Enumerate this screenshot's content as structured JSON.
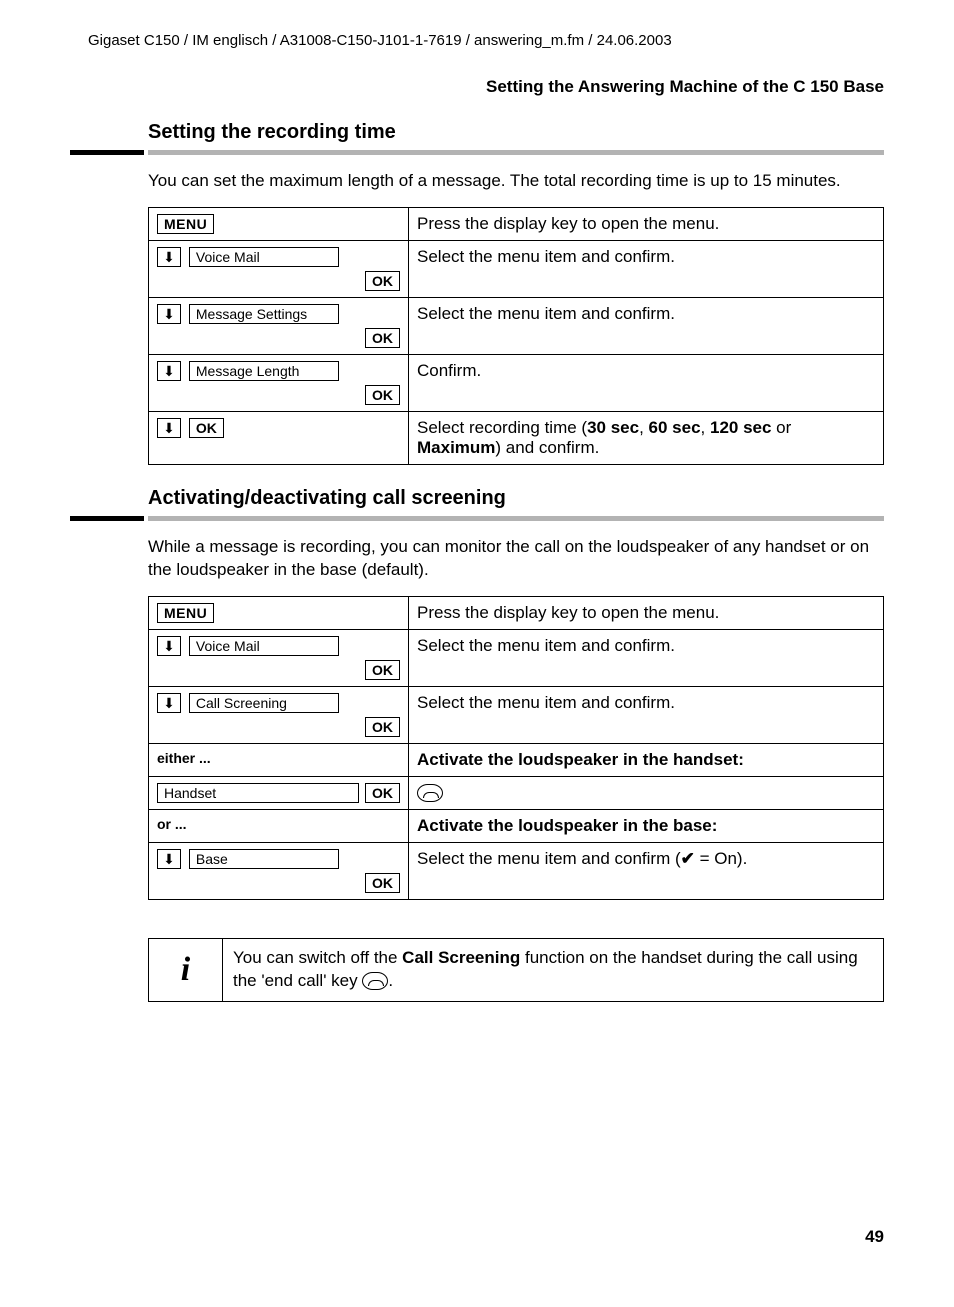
{
  "header": "Gigaset C150 / IM englisch / A31008-C150-J101-1-7619 / answering_m.fm / 24.06.2003",
  "running_title": "Setting the Answering Machine of the C 150 Base",
  "page_number": "49",
  "labels": {
    "menu": "MENU",
    "ok": "OK",
    "arrow_down": "⬇"
  },
  "section1": {
    "title": "Setting the recording time",
    "intro": "You can set the maximum length of a message. The total recording time is up to 15 minutes.",
    "rows": [
      {
        "type": "menu",
        "desc": "Press the display key to open the menu."
      },
      {
        "type": "item",
        "item": "Voice Mail",
        "desc": "Select the menu item and confirm."
      },
      {
        "type": "item",
        "item": "Message Settings",
        "desc": "Select the menu item and confirm."
      },
      {
        "type": "item",
        "item": "Message Length",
        "desc": "Confirm."
      },
      {
        "type": "ok_only",
        "desc_pre": "Select recording time (",
        "bold1": "30 sec",
        "sep1": ", ",
        "bold2": "60 sec",
        "sep2": ", ",
        "bold3": "120 sec",
        "sep3": " or ",
        "bold4": "Maximum",
        "desc_post": ") and confirm."
      }
    ]
  },
  "section2": {
    "title": "Activating/deactivating call screening",
    "intro": "While a message is recording, you can monitor the call on the loudspeaker of any handset or on the loudspeaker in the base (default).",
    "rows": [
      {
        "type": "menu",
        "desc": "Press the display key to open the menu."
      },
      {
        "type": "item",
        "item": "Voice Mail",
        "desc": "Select the menu item and confirm."
      },
      {
        "type": "item",
        "item": "Call Screening",
        "desc": "Select the menu item and confirm."
      },
      {
        "type": "subhead",
        "left": "either ...",
        "right": "Activate the loudspeaker in the handset:"
      },
      {
        "type": "choice",
        "item": "Handset",
        "desc_icon": true
      },
      {
        "type": "subhead",
        "left": "or ...",
        "right": "Activate the loudspeaker in the base:"
      },
      {
        "type": "item",
        "item": "Base",
        "desc": "Select the menu item and confirm ( ✔ = On).",
        "desc_pre": "Select the menu item and confirm (",
        "desc_check": "✔",
        "desc_post": " = On)."
      }
    ]
  },
  "info": {
    "icon": "i",
    "text_pre": "You can switch off the ",
    "bold": "Call Screening",
    "text_mid": " function on the handset during the call using the 'end call' key ",
    "text_post": "."
  }
}
